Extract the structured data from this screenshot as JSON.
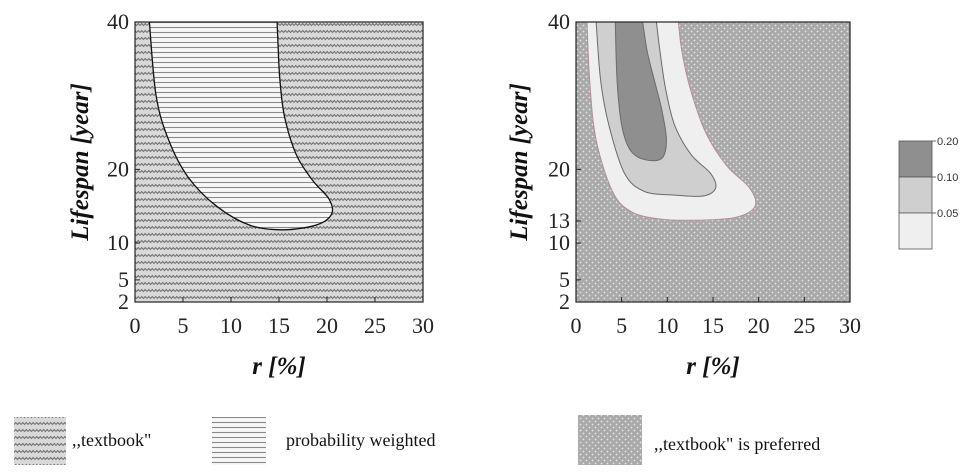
{
  "chart_data": [
    {
      "type": "contour",
      "panel": "left",
      "xlabel": "r [%]",
      "xlabel_var": "r",
      "xlabel_unit": " [%]",
      "ylabel": "Lifespan [year]",
      "ylabel_var": "Lifespan",
      "ylabel_unit": " [year]",
      "xlim": [
        0,
        30
      ],
      "ylim": [
        2,
        40
      ],
      "x_ticks": [
        0,
        5,
        10,
        15,
        20,
        25,
        30
      ],
      "y_ticks": [
        2,
        5,
        10,
        20,
        40
      ],
      "regions": [
        {
          "name": ",,textbook\"",
          "fill": "zigzag",
          "where": "outside"
        },
        {
          "name": "probability weighted",
          "fill": "hatch",
          "boundary": [
            [
              1.5,
              40
            ],
            [
              2.2,
              30
            ],
            [
              3.5,
              24
            ],
            [
              5.5,
              19
            ],
            [
              8.5,
              15
            ],
            [
              12,
              12.4
            ],
            [
              15.5,
              11.8
            ],
            [
              19,
              12.5
            ],
            [
              20.5,
              14
            ],
            [
              20.2,
              16
            ],
            [
              18.5,
              18.5
            ],
            [
              16.8,
              22
            ],
            [
              15.6,
              27
            ],
            [
              15.1,
              32
            ],
            [
              14.9,
              37
            ],
            [
              14.8,
              40
            ]
          ]
        }
      ]
    },
    {
      "type": "contour",
      "panel": "right",
      "xlabel": "r [%]",
      "xlabel_var": "r",
      "xlabel_unit": " [%]",
      "ylabel": "Lifespan [year]",
      "ylabel_var": "Lifespan",
      "ylabel_unit": " [year]",
      "xlim": [
        0,
        30
      ],
      "ylim": [
        2,
        40
      ],
      "x_ticks": [
        0,
        5,
        10,
        15,
        20,
        25,
        30
      ],
      "y_ticks": [
        2,
        5,
        10,
        13,
        20,
        40
      ],
      "background": {
        "name": ",,textbook\" is preferred",
        "fill": "dots"
      },
      "levels": [
        {
          "level": 0.05,
          "color": "#efefef",
          "boundary": [
            [
              1.2,
              40
            ],
            [
              1.5,
              32
            ],
            [
              2.2,
              24
            ],
            [
              4,
              17
            ],
            [
              6,
              14.3
            ],
            [
              9,
              13.3
            ],
            [
              13,
              13.1
            ],
            [
              17.5,
              13.5
            ],
            [
              19.6,
              15
            ],
            [
              19,
              17.5
            ],
            [
              16.5,
              20.5
            ],
            [
              14.2,
              25
            ],
            [
              12.5,
              31
            ],
            [
              11.6,
              36
            ],
            [
              11.2,
              40
            ]
          ]
        },
        {
          "level": 0.1,
          "color": "#cfcfcf",
          "boundary": [
            [
              2.2,
              40
            ],
            [
              2.7,
              32
            ],
            [
              3.6,
              26
            ],
            [
              5.3,
              19.5
            ],
            [
              7.5,
              17
            ],
            [
              11,
              16.5
            ],
            [
              14,
              16.4
            ],
            [
              15.3,
              17.5
            ],
            [
              14.7,
              19.5
            ],
            [
              12.6,
              22
            ],
            [
              10.8,
              26
            ],
            [
              9.8,
              31
            ],
            [
              9.2,
              36
            ],
            [
              8.8,
              40
            ]
          ]
        },
        {
          "level": 0.2,
          "color": "#8f8f8f",
          "boundary": [
            [
              4.3,
              40
            ],
            [
              4.5,
              32
            ],
            [
              5,
              26
            ],
            [
              6,
              22.5
            ],
            [
              7.6,
              21.3
            ],
            [
              9.4,
              21.5
            ],
            [
              9.9,
              24
            ],
            [
              9.4,
              28
            ],
            [
              8.6,
              32
            ],
            [
              7.8,
              36
            ],
            [
              7.3,
              40
            ]
          ]
        }
      ]
    }
  ],
  "colorbar": {
    "ticks": [
      {
        "label": "0.20",
        "color": "#8f8f8f"
      },
      {
        "label": "0.10",
        "color": "#cfcfcf"
      },
      {
        "label": "0.05",
        "color": "#efefef"
      }
    ]
  },
  "legend": {
    "items": [
      {
        "label": ",,textbook\"",
        "pattern": "zigzag"
      },
      {
        "label": "probability weighted",
        "pattern": "hatch"
      },
      {
        "label": ",,textbook\" is preferred",
        "pattern": "dots"
      }
    ]
  }
}
